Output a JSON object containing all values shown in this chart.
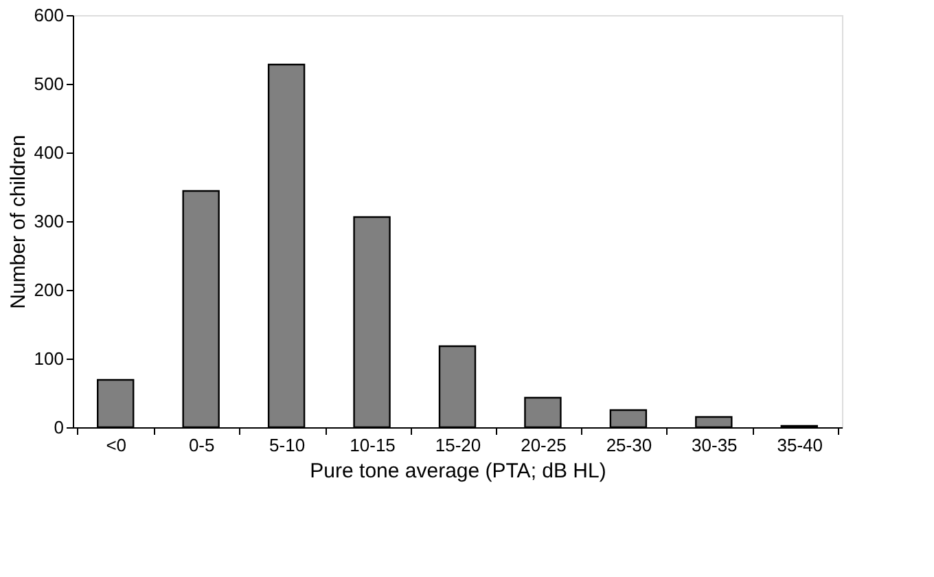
{
  "chart_data": {
    "type": "bar",
    "xlabel": "Pure tone average (PTA; dB HL)",
    "ylabel": "Number of children",
    "categories": [
      "<0",
      "0-5",
      "5-10",
      "10-15",
      "15-20",
      "20-25",
      "25-30",
      "30-35",
      "35-40"
    ],
    "values": [
      69,
      344,
      528,
      306,
      118,
      43,
      25,
      15,
      2
    ],
    "color": "#808080",
    "ylim": [
      0,
      600
    ],
    "yticks": [
      0,
      100,
      200,
      300,
      400,
      500,
      600
    ],
    "grid": false
  }
}
